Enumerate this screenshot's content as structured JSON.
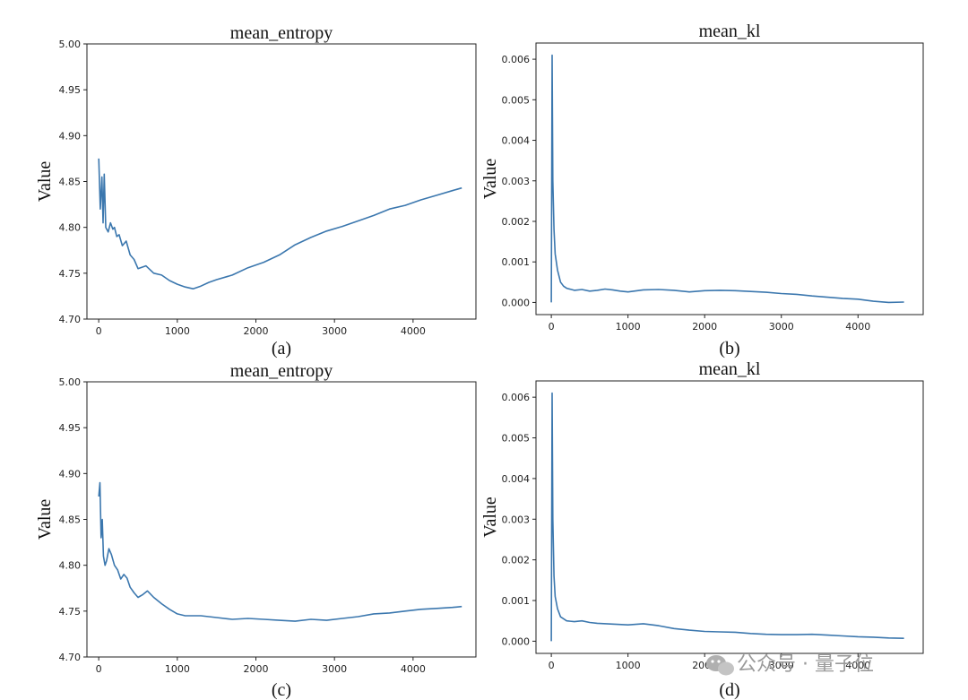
{
  "watermark": {
    "text": "公众号 · 量子位",
    "icon": "wechat-icon"
  },
  "chart_data": [
    {
      "type": "line",
      "title": "mean_entropy",
      "ylabel": "Value",
      "caption": "(a)",
      "xlim": [
        -150,
        4800
      ],
      "ylim": [
        4.7,
        5.0
      ],
      "xticks": [
        0,
        1000,
        2000,
        3000,
        4000
      ],
      "yticks": [
        "4.70",
        "4.75",
        "4.80",
        "4.85",
        "4.90",
        "4.95",
        "5.00"
      ],
      "grid": false,
      "series": [
        {
          "color": "#3b77ae",
          "x": [
            0,
            20,
            40,
            55,
            70,
            90,
            120,
            150,
            180,
            200,
            230,
            260,
            300,
            350,
            400,
            450,
            500,
            600,
            700,
            800,
            900,
            1000,
            1100,
            1200,
            1300,
            1400,
            1500,
            1700,
            1900,
            2100,
            2300,
            2500,
            2700,
            2900,
            3100,
            3300,
            3500,
            3700,
            3900,
            4100,
            4300,
            4500,
            4620
          ],
          "y": [
            4.875,
            4.82,
            4.855,
            4.805,
            4.858,
            4.8,
            4.795,
            4.805,
            4.798,
            4.8,
            4.79,
            4.792,
            4.78,
            4.785,
            4.77,
            4.765,
            4.755,
            4.758,
            4.75,
            4.748,
            4.742,
            4.738,
            4.735,
            4.733,
            4.736,
            4.74,
            4.743,
            4.748,
            4.756,
            4.762,
            4.77,
            4.781,
            4.789,
            4.796,
            4.801,
            4.807,
            4.813,
            4.82,
            4.824,
            4.83,
            4.835,
            4.84,
            4.843
          ]
        }
      ]
    },
    {
      "type": "line",
      "title": "mean_kl",
      "ylabel": "Value",
      "caption": "(b)",
      "xlim": [
        -200,
        4850
      ],
      "ylim": [
        -0.0003,
        0.0064
      ],
      "xticks": [
        0,
        1000,
        2000,
        3000,
        4000
      ],
      "yticks": [
        "0.000",
        "0.001",
        "0.002",
        "0.003",
        "0.004",
        "0.005",
        "0.006"
      ],
      "grid": false,
      "series": [
        {
          "color": "#3b77ae",
          "x": [
            0,
            10,
            20,
            35,
            50,
            80,
            120,
            160,
            200,
            300,
            400,
            500,
            600,
            700,
            800,
            900,
            1000,
            1200,
            1400,
            1600,
            1800,
            2000,
            2200,
            2400,
            2600,
            2800,
            3000,
            3200,
            3400,
            3600,
            3800,
            4000,
            4200,
            4400,
            4600
          ],
          "y": [
            0.0,
            0.0061,
            0.003,
            0.0018,
            0.0012,
            0.0008,
            0.0005,
            0.0004,
            0.00035,
            0.0003,
            0.00032,
            0.00028,
            0.0003,
            0.00033,
            0.00031,
            0.00028,
            0.00026,
            0.00031,
            0.00032,
            0.0003,
            0.00026,
            0.00029,
            0.0003,
            0.00029,
            0.00027,
            0.00025,
            0.00022,
            0.0002,
            0.00016,
            0.00013,
            0.0001,
            8e-05,
            3e-05,
            0.0,
            1e-05
          ]
        }
      ]
    },
    {
      "type": "line",
      "title": "mean_entropy",
      "ylabel": "Value",
      "caption": "(c)",
      "xlim": [
        -150,
        4800
      ],
      "ylim": [
        4.7,
        5.0
      ],
      "xticks": [
        0,
        1000,
        2000,
        3000,
        4000
      ],
      "yticks": [
        "4.70",
        "4.75",
        "4.80",
        "4.85",
        "4.90",
        "4.95",
        "5.00"
      ],
      "grid": false,
      "series": [
        {
          "color": "#3b77ae",
          "x": [
            0,
            15,
            30,
            45,
            60,
            80,
            100,
            130,
            160,
            200,
            240,
            280,
            320,
            360,
            400,
            450,
            500,
            560,
            620,
            700,
            800,
            900,
            1000,
            1100,
            1300,
            1500,
            1700,
            1900,
            2100,
            2300,
            2500,
            2700,
            2900,
            3100,
            3300,
            3500,
            3700,
            3900,
            4100,
            4300,
            4500,
            4620
          ],
          "y": [
            4.875,
            4.89,
            4.83,
            4.85,
            4.81,
            4.8,
            4.805,
            4.818,
            4.812,
            4.8,
            4.795,
            4.785,
            4.79,
            4.786,
            4.776,
            4.77,
            4.765,
            4.768,
            4.772,
            4.765,
            4.758,
            4.752,
            4.747,
            4.745,
            4.745,
            4.743,
            4.741,
            4.742,
            4.741,
            4.74,
            4.739,
            4.741,
            4.74,
            4.742,
            4.744,
            4.747,
            4.748,
            4.75,
            4.752,
            4.753,
            4.754,
            4.755
          ]
        }
      ]
    },
    {
      "type": "line",
      "title": "mean_kl",
      "ylabel": "Value",
      "caption": "(d)",
      "xlim": [
        -200,
        4850
      ],
      "ylim": [
        -0.0003,
        0.0064
      ],
      "xticks": [
        0,
        1000,
        2000,
        3000,
        4000
      ],
      "yticks": [
        "0.000",
        "0.001",
        "0.002",
        "0.003",
        "0.004",
        "0.005",
        "0.006"
      ],
      "grid": false,
      "series": [
        {
          "color": "#3b77ae",
          "x": [
            0,
            10,
            20,
            35,
            50,
            80,
            120,
            160,
            200,
            300,
            400,
            500,
            600,
            800,
            1000,
            1200,
            1400,
            1600,
            1800,
            2000,
            2200,
            2400,
            2600,
            2800,
            3000,
            3200,
            3400,
            3600,
            3800,
            4000,
            4200,
            4400,
            4600
          ],
          "y": [
            0.0,
            0.0061,
            0.003,
            0.0016,
            0.0011,
            0.0008,
            0.0006,
            0.00055,
            0.0005,
            0.00048,
            0.0005,
            0.00046,
            0.00044,
            0.00042,
            0.0004,
            0.00043,
            0.00038,
            0.00031,
            0.00027,
            0.00024,
            0.00023,
            0.00022,
            0.00019,
            0.00017,
            0.00016,
            0.00016,
            0.00017,
            0.00015,
            0.00013,
            0.00011,
            0.0001,
            8e-05,
            7e-05
          ]
        }
      ]
    }
  ]
}
